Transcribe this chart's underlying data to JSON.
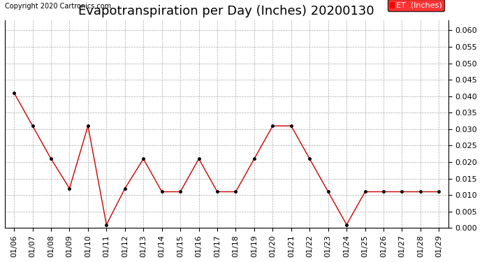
{
  "title": "Evapotranspiration per Day (Inches) 20200130",
  "copyright_text": "Copyright 2020 Cartronics.com",
  "legend_label": "ET  (Inches)",
  "legend_bg": "#ff0000",
  "legend_fg": "#ffffff",
  "x_labels": [
    "01/06",
    "01/07",
    "01/08",
    "01/09",
    "01/10",
    "01/11",
    "01/12",
    "01/13",
    "01/14",
    "01/15",
    "01/16",
    "01/17",
    "01/18",
    "01/19",
    "01/20",
    "01/21",
    "01/22",
    "01/23",
    "01/24",
    "01/25",
    "01/26",
    "01/27",
    "01/28",
    "01/29"
  ],
  "y_values": [
    0.041,
    0.031,
    0.021,
    0.012,
    0.031,
    0.001,
    0.012,
    0.021,
    0.011,
    0.011,
    0.021,
    0.011,
    0.011,
    0.021,
    0.031,
    0.031,
    0.021,
    0.011,
    0.001,
    0.011,
    0.011,
    0.011,
    0.011,
    0.011
  ],
  "line_color": "#cc0000",
  "marker": ".",
  "marker_color": "#000000",
  "marker_size": 5,
  "ylim": [
    0.0,
    0.063
  ],
  "yticks": [
    0.0,
    0.005,
    0.01,
    0.015,
    0.02,
    0.025,
    0.03,
    0.035,
    0.04,
    0.045,
    0.05,
    0.055,
    0.06
  ],
  "grid_color": "#aaaaaa",
  "bg_color": "#ffffff",
  "title_fontsize": 13,
  "tick_fontsize": 8,
  "copyright_fontsize": 7,
  "legend_fontsize": 8
}
